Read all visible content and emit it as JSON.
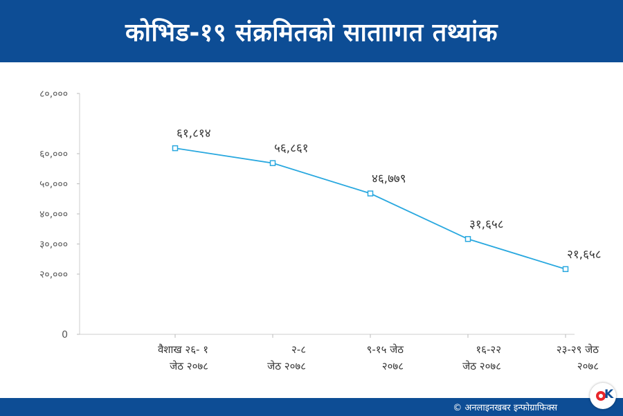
{
  "header": {
    "title": "कोभिड-१९ संक्रमितको साताागत तथ्यांक"
  },
  "footer": {
    "credit": "© अनलाइनखबर इन्फोग्राफिक्स"
  },
  "colors": {
    "header_bg": "#0d4d95",
    "line": "#29a8df",
    "axis_text": "#555555",
    "label_text": "#333333"
  },
  "chart_data": {
    "type": "line",
    "title": "कोभिड-१९ संक्रमितको साताागत तथ्यांक",
    "xlabel": "",
    "ylabel": "",
    "ylim": [
      0,
      80000
    ],
    "y_ticks": [
      0,
      20000,
      30000,
      40000,
      50000,
      60000,
      80000
    ],
    "y_tick_labels": [
      "0",
      "२०,०००",
      "३०,०००",
      "४०,०००",
      "५०,०००",
      "६०,०००",
      "८०,०००"
    ],
    "categories": [
      [
        "वैशाख २६- १",
        "जेठ २०७८"
      ],
      [
        "२-८",
        "जेठ २०७८"
      ],
      [
        "९-१५ जेठ",
        "२०७८"
      ],
      [
        "१६-२२",
        "जेठ २०७८"
      ],
      [
        "२३-२९ जेठ",
        "२०७८"
      ]
    ],
    "values": [
      61814,
      56861,
      46779,
      31658,
      21658
    ],
    "data_labels": [
      "६१,८१४",
      "५६,८६१",
      "४६,७७९",
      "३१,६५८",
      "२१,६५८"
    ],
    "grid": false,
    "legend": "none"
  }
}
